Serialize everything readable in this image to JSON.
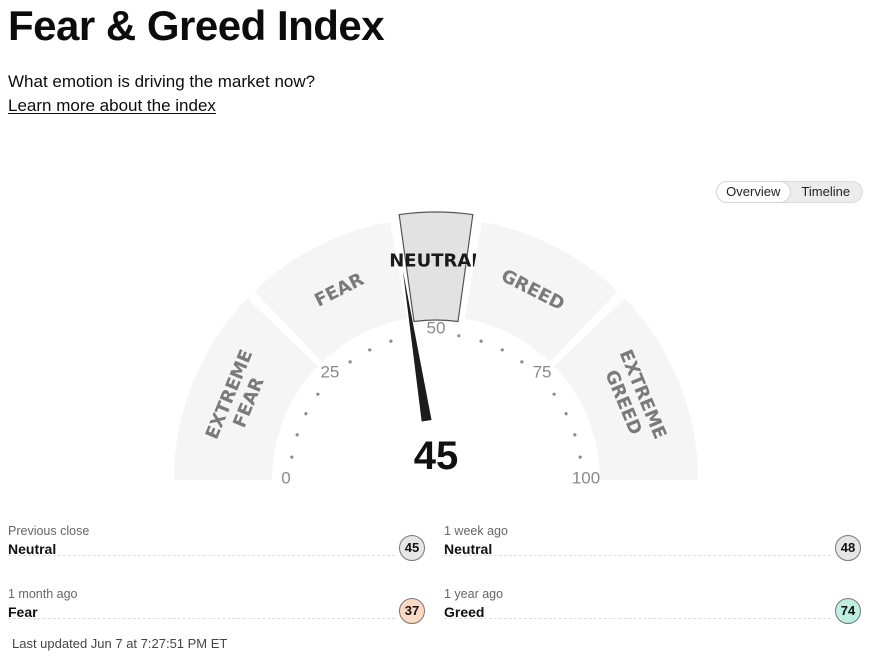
{
  "header": {
    "title": "Fear & Greed Index",
    "subtitle": "What emotion is driving the market now?",
    "learn_more": "Learn more about the index"
  },
  "view_toggle": {
    "options": [
      "Overview",
      "Timeline"
    ],
    "selected": "Overview"
  },
  "gauge": {
    "value": 45,
    "value_label": "45",
    "current_zone": "NEUTRAL",
    "zones": [
      {
        "label_lines": [
          "EXTREME",
          "FEAR"
        ],
        "from": 0,
        "to": 25
      },
      {
        "label_lines": [
          "FEAR"
        ],
        "from": 25,
        "to": 45
      },
      {
        "label_lines": [
          "NEUTRAL"
        ],
        "from": 45,
        "to": 55
      },
      {
        "label_lines": [
          "GREED"
        ],
        "from": 55,
        "to": 75
      },
      {
        "label_lines": [
          "EXTREME",
          "GREED"
        ],
        "from": 75,
        "to": 100
      }
    ],
    "ticks": [
      "0",
      "25",
      "50",
      "75",
      "100"
    ],
    "colors": {
      "zone_fill": "#f5f5f5",
      "active_zone_fill": "#e2e2e2",
      "zone_text": "#7a7a7a",
      "active_zone_text": "#1a1a1a",
      "needle": "#1c1c1c"
    }
  },
  "history": [
    {
      "label": "Previous close",
      "rating": "Neutral",
      "value": "45",
      "color": "#e6e6e6"
    },
    {
      "label": "1 week ago",
      "rating": "Neutral",
      "value": "48",
      "color": "#e6e6e6"
    },
    {
      "label": "1 month ago",
      "rating": "Fear",
      "value": "37",
      "color": "#fcd9c2"
    },
    {
      "label": "1 year ago",
      "rating": "Greed",
      "value": "74",
      "color": "#bdeee0"
    }
  ],
  "last_updated": "Last updated Jun 7 at 7:27:51 PM ET"
}
